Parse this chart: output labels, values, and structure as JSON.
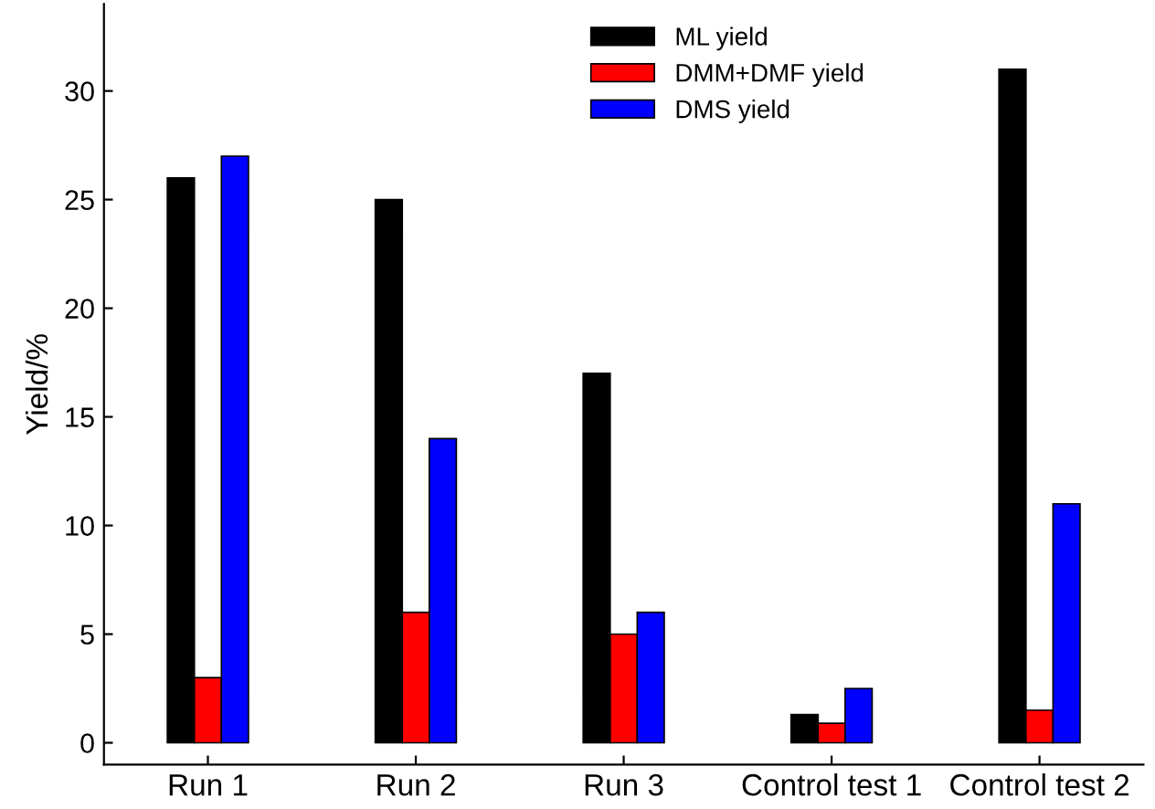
{
  "chart_data": {
    "type": "bar",
    "ylabel": "Yield/%",
    "categories": [
      "Run 1",
      "Run 2",
      "Run 3",
      "Control test 1",
      "Control test 2"
    ],
    "series": [
      {
        "name": "ML yield",
        "color": "#000000",
        "values": [
          26,
          25,
          17,
          1.3,
          31
        ]
      },
      {
        "name": "DMM+DMF yield",
        "color": "#ff0000",
        "values": [
          3,
          6,
          5,
          0.9,
          1.5
        ]
      },
      {
        "name": "DMS yield",
        "color": "#0000ff",
        "values": [
          27,
          14,
          6,
          2.5,
          11
        ]
      }
    ],
    "ylim": [
      -1,
      34
    ],
    "yticks": [
      0,
      5,
      10,
      15,
      20,
      25,
      30
    ],
    "legend": "top",
    "grid": false
  }
}
